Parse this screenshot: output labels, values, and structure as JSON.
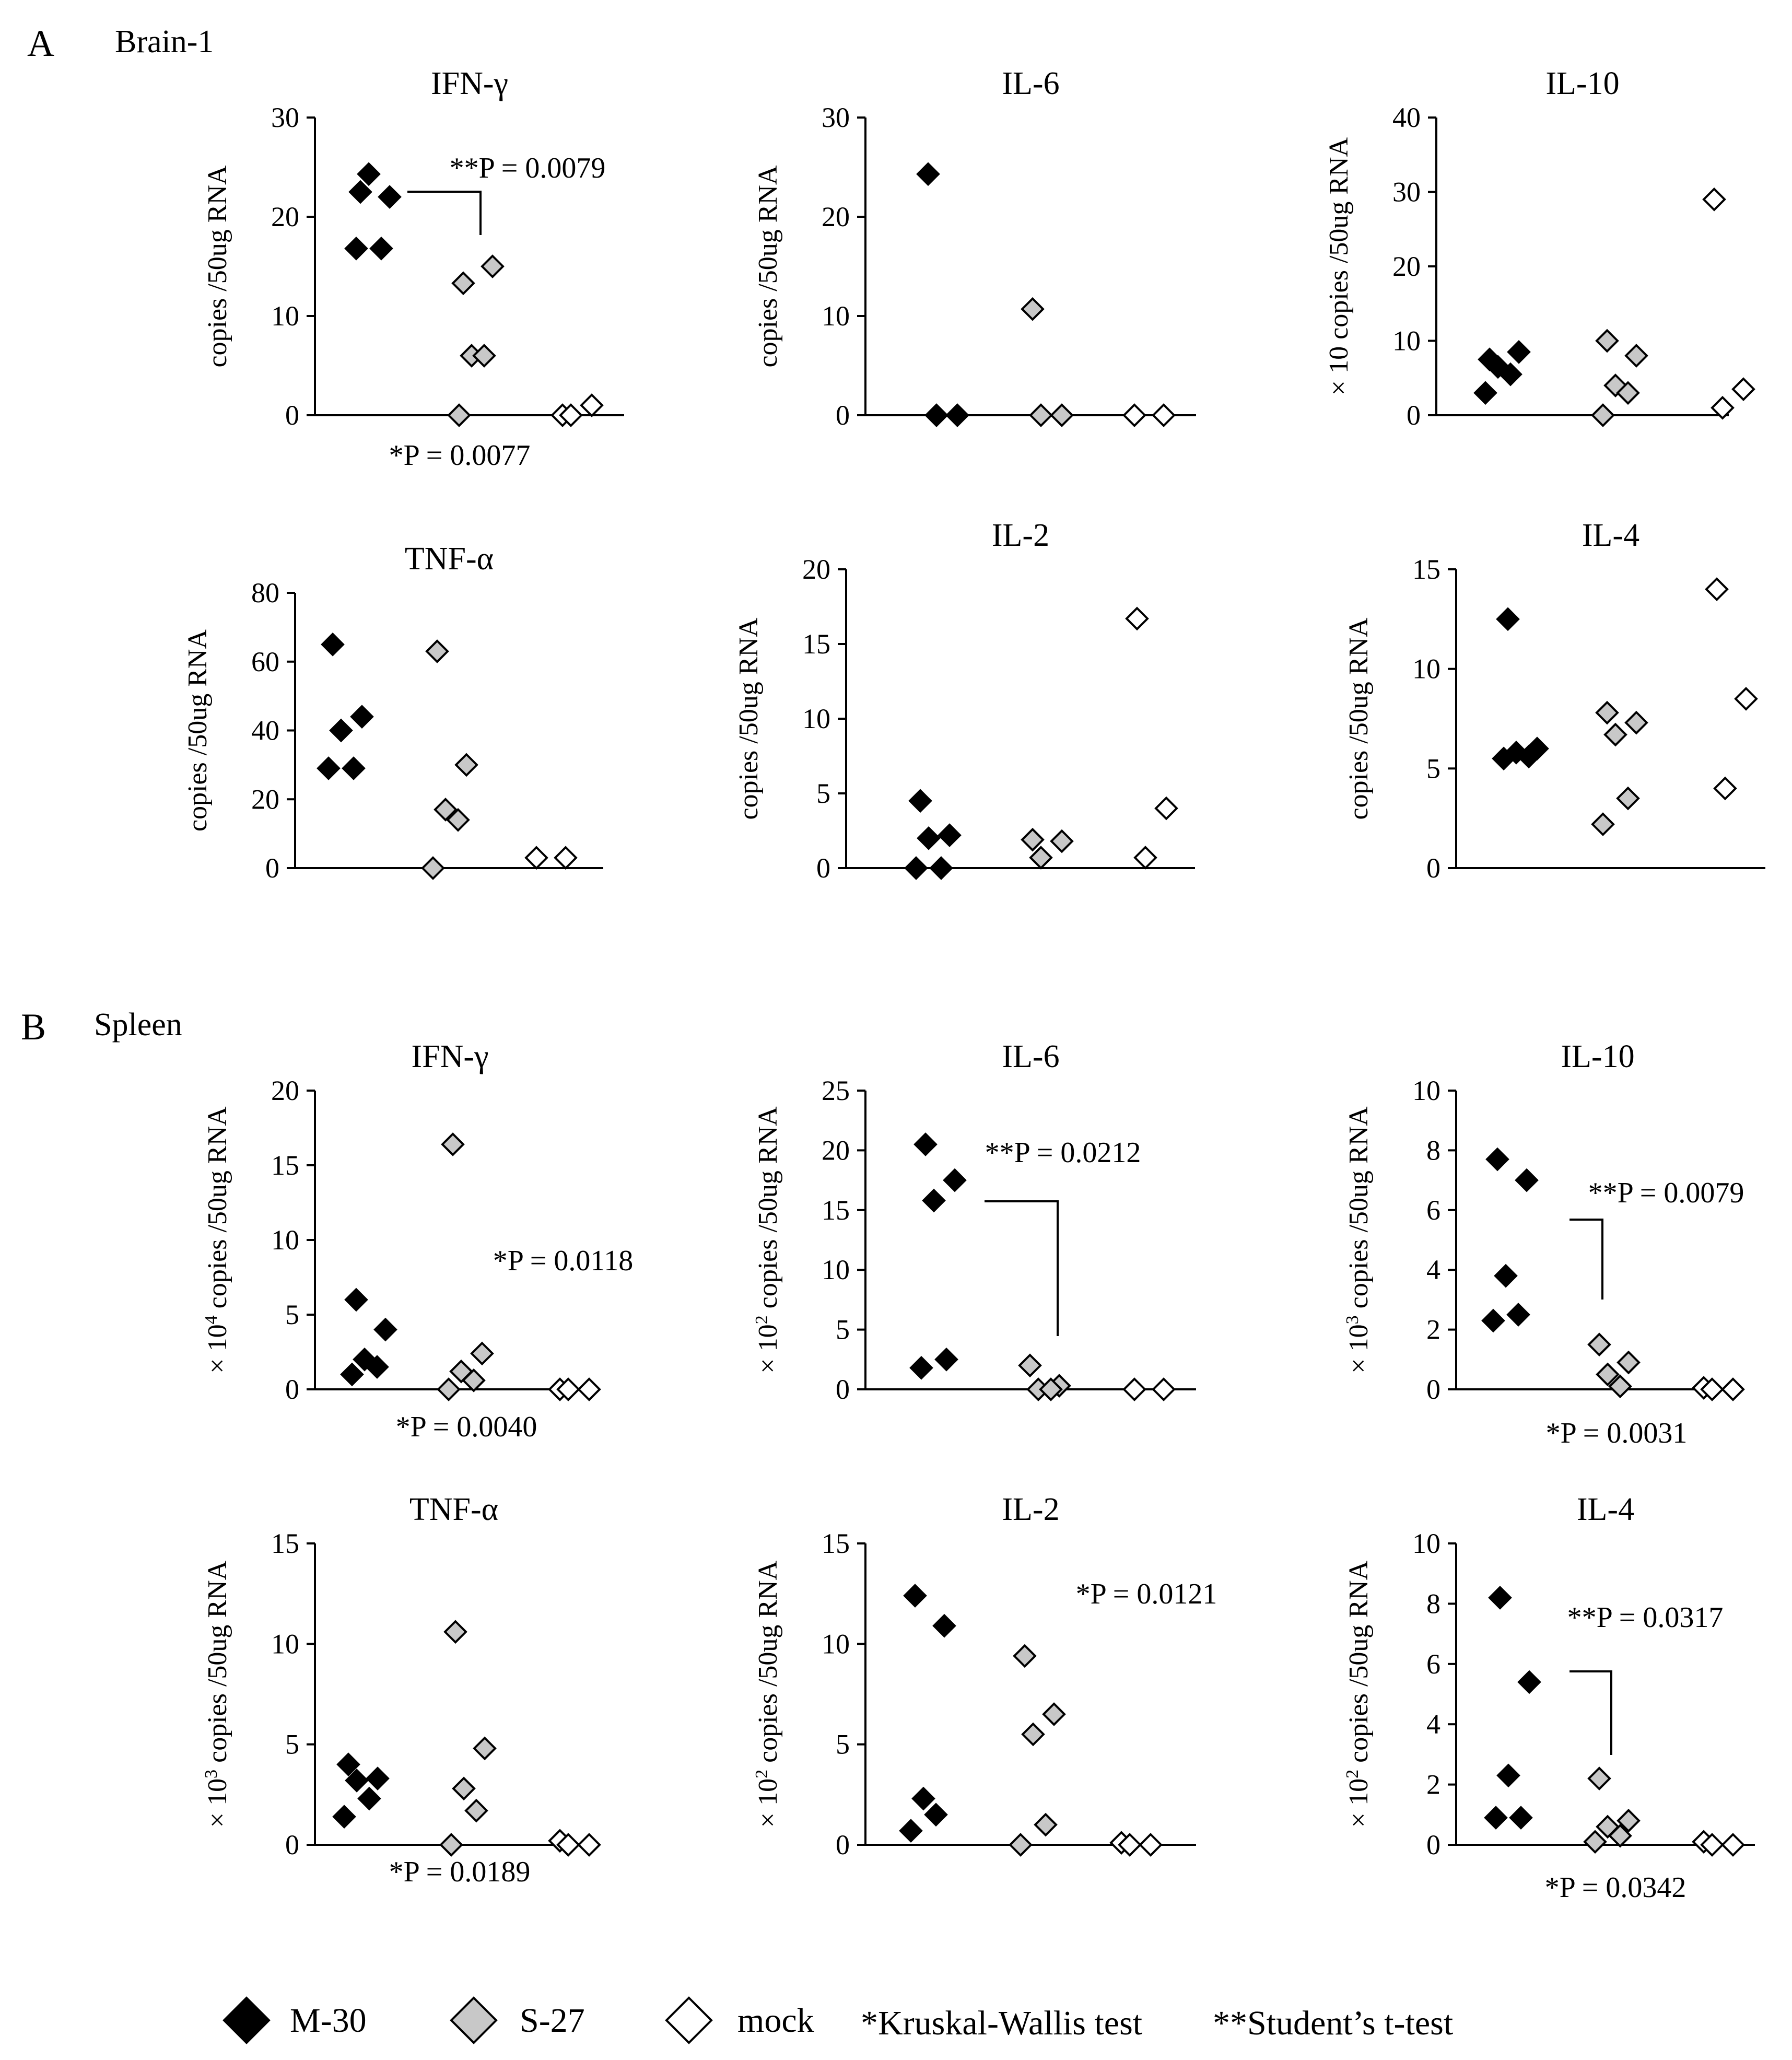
{
  "figure": {
    "panel_a": {
      "letter": "A",
      "name": "Brain-1"
    },
    "panel_b": {
      "letter": "B",
      "name": "Spleen"
    },
    "legend": {
      "m30": "M-30",
      "s27": "S-27",
      "mock": "mock",
      "kw": "*Kruskal-Wallis test",
      "tt": "**Student’s t-test"
    },
    "colors": {
      "m30": "#000000",
      "s27": "#c8c8c8",
      "mock": "#ffffff",
      "edge": "#000000"
    }
  },
  "chart_data": [
    {
      "type": "scatter",
      "panel": "A",
      "title": "IFN-γ",
      "ylabel": "copies /50ug RNA",
      "ylabel_prefix": "",
      "ylabel_exp": "",
      "ylim": [
        0,
        30
      ],
      "yticks": [
        0,
        10,
        20,
        30
      ],
      "xticks": [],
      "grid": false,
      "groups": [
        "M-30",
        "S-27",
        "mock"
      ],
      "series": [
        {
          "name": "M-30",
          "values": [
            22.5,
            22.0,
            24.3,
            16.8,
            16.8
          ]
        },
        {
          "name": "S-27",
          "values": [
            13.3,
            15.0,
            6.0,
            6.0,
            0.0
          ]
        },
        {
          "name": "mock",
          "values": [
            0.0,
            1.0,
            0.0
          ]
        }
      ],
      "annotations": {
        "kw": "*P = 0.0077",
        "tt": "**P = 0.0079"
      }
    },
    {
      "type": "scatter",
      "panel": "A",
      "title": "IL-6",
      "ylabel": "copies /50ug RNA",
      "ylabel_prefix": "",
      "ylabel_exp": "",
      "ylim": [
        0,
        30
      ],
      "yticks": [
        0,
        10,
        20,
        30
      ],
      "xticks": [],
      "grid": false,
      "groups": [
        "M-30",
        "S-27",
        "mock"
      ],
      "series": [
        {
          "name": "M-30",
          "values": [
            24.3,
            0.0,
            0.0
          ]
        },
        {
          "name": "S-27",
          "values": [
            10.7,
            0.0,
            0.0
          ]
        },
        {
          "name": "mock",
          "values": [
            0.0,
            0.0
          ]
        }
      ],
      "annotations": {}
    },
    {
      "type": "scatter",
      "panel": "A",
      "title": "IL-10",
      "ylabel": "copies /50ug RNA",
      "ylabel_prefix": "× 10 ",
      "ylabel_exp": "",
      "ylim": [
        0,
        40
      ],
      "yticks": [
        0,
        10,
        20,
        30,
        40
      ],
      "xticks": [],
      "grid": false,
      "groups": [
        "M-30",
        "S-27",
        "mock"
      ],
      "series": [
        {
          "name": "M-30",
          "values": [
            7.5,
            8.5,
            6.5,
            5.5,
            3.0
          ]
        },
        {
          "name": "S-27",
          "values": [
            10.0,
            8.0,
            4.0,
            3.0,
            0.0
          ]
        },
        {
          "name": "mock",
          "values": [
            29.0,
            3.5,
            1.0
          ]
        }
      ],
      "annotations": {}
    },
    {
      "type": "scatter",
      "panel": "A",
      "title": "TNF-α",
      "ylabel": "copies /50ug RNA",
      "ylabel_prefix": "",
      "ylabel_exp": "",
      "ylim": [
        0,
        80
      ],
      "yticks": [
        0,
        20,
        40,
        60,
        80
      ],
      "xticks": [],
      "grid": false,
      "groups": [
        "M-30",
        "S-27",
        "mock"
      ],
      "series": [
        {
          "name": "M-30",
          "values": [
            65.0,
            44.0,
            40.0,
            29.0,
            29.0
          ]
        },
        {
          "name": "S-27",
          "values": [
            63.0,
            30.0,
            17.0,
            14.0,
            0.0
          ]
        },
        {
          "name": "mock",
          "values": [
            3.0,
            3.0
          ]
        }
      ],
      "annotations": {}
    },
    {
      "type": "scatter",
      "panel": "A",
      "title": "IL-2",
      "ylabel": "copies /50ug RNA",
      "ylabel_prefix": "",
      "ylabel_exp": "",
      "ylim": [
        0,
        20
      ],
      "yticks": [
        0,
        5,
        10,
        15,
        20
      ],
      "xticks": [],
      "grid": false,
      "groups": [
        "M-30",
        "S-27",
        "mock"
      ],
      "series": [
        {
          "name": "M-30",
          "values": [
            4.5,
            2.2,
            2.0,
            0.0,
            0.0
          ]
        },
        {
          "name": "S-27",
          "values": [
            1.9,
            1.8,
            0.7
          ]
        },
        {
          "name": "mock",
          "values": [
            16.7,
            4.0,
            0.7
          ]
        }
      ],
      "annotations": {}
    },
    {
      "type": "scatter",
      "panel": "A",
      "title": "IL-4",
      "ylabel": "copies /50ug RNA",
      "ylabel_prefix": "",
      "ylabel_exp": "",
      "ylim": [
        0,
        15
      ],
      "yticks": [
        0,
        5,
        10,
        15
      ],
      "xticks": [],
      "grid": false,
      "groups": [
        "M-30",
        "S-27",
        "mock"
      ],
      "series": [
        {
          "name": "M-30",
          "values": [
            12.5,
            6.0,
            5.8,
            5.6,
            5.5
          ]
        },
        {
          "name": "S-27",
          "values": [
            7.8,
            7.3,
            6.7,
            3.5,
            2.2
          ]
        },
        {
          "name": "mock",
          "values": [
            14.0,
            8.5,
            4.0
          ]
        }
      ],
      "annotations": {}
    },
    {
      "type": "scatter",
      "panel": "B",
      "title": "IFN-γ",
      "ylabel": "copies /50ug RNA",
      "ylabel_prefix": "× 10",
      "ylabel_exp": "4",
      "ylim": [
        0,
        20
      ],
      "yticks": [
        0,
        5,
        10,
        15,
        20
      ],
      "xticks": [],
      "grid": false,
      "groups": [
        "M-30",
        "S-27",
        "mock"
      ],
      "series": [
        {
          "name": "M-30",
          "values": [
            6.0,
            4.0,
            2.0,
            1.5,
            1.0
          ]
        },
        {
          "name": "S-27",
          "values": [
            16.4,
            2.4,
            1.2,
            0.6,
            0.0
          ]
        },
        {
          "name": "mock",
          "values": [
            0.0,
            0.0,
            0.0
          ]
        }
      ],
      "annotations": {
        "kw": "*P = 0.0040",
        "kw2": "*P = 0.0118"
      }
    },
    {
      "type": "scatter",
      "panel": "B",
      "title": "IL-6",
      "ylabel": "copies /50ug RNA",
      "ylabel_prefix": "× 10",
      "ylabel_exp": "2",
      "ylim": [
        0,
        25
      ],
      "yticks": [
        0,
        5,
        10,
        15,
        20,
        25
      ],
      "xticks": [],
      "grid": false,
      "groups": [
        "M-30",
        "S-27",
        "mock"
      ],
      "series": [
        {
          "name": "M-30",
          "values": [
            20.5,
            17.5,
            15.8,
            2.5,
            1.8
          ]
        },
        {
          "name": "S-27",
          "values": [
            2.0,
            0.3,
            0.0,
            0.0
          ]
        },
        {
          "name": "mock",
          "values": [
            0.0,
            0.0
          ]
        }
      ],
      "annotations": {
        "tt": "**P = 0.0212"
      }
    },
    {
      "type": "scatter",
      "panel": "B",
      "title": "IL-10",
      "ylabel": "copies /50ug RNA",
      "ylabel_prefix": "× 10",
      "ylabel_exp": "3",
      "ylim": [
        0,
        10
      ],
      "yticks": [
        0,
        2,
        4,
        6,
        8,
        10
      ],
      "xticks": [],
      "grid": false,
      "groups": [
        "M-30",
        "S-27",
        "mock"
      ],
      "series": [
        {
          "name": "M-30",
          "values": [
            7.7,
            7.0,
            3.8,
            2.5,
            2.3
          ]
        },
        {
          "name": "S-27",
          "values": [
            1.5,
            0.9,
            0.5,
            0.1
          ]
        },
        {
          "name": "mock",
          "values": [
            0.05,
            0.0,
            0.0
          ]
        }
      ],
      "annotations": {
        "kw": "*P = 0.0031",
        "tt": "**P = 0.0079"
      }
    },
    {
      "type": "scatter",
      "panel": "B",
      "title": "TNF-α",
      "ylabel": "copies /50ug RNA",
      "ylabel_prefix": "× 10",
      "ylabel_exp": "3",
      "ylim": [
        0,
        15
      ],
      "yticks": [
        0,
        5,
        10,
        15
      ],
      "xticks": [],
      "grid": false,
      "groups": [
        "M-30",
        "S-27",
        "mock"
      ],
      "series": [
        {
          "name": "M-30",
          "values": [
            4.0,
            3.3,
            3.2,
            2.3,
            1.4
          ]
        },
        {
          "name": "S-27",
          "values": [
            10.6,
            4.8,
            2.8,
            1.7,
            0.0
          ]
        },
        {
          "name": "mock",
          "values": [
            0.2,
            0.0,
            0.0
          ]
        }
      ],
      "annotations": {
        "kw": "*P = 0.0189"
      }
    },
    {
      "type": "scatter",
      "panel": "B",
      "title": "IL-2",
      "ylabel": "copies /50ug RNA",
      "ylabel_prefix": "× 10",
      "ylabel_exp": "2",
      "ylim": [
        0,
        15
      ],
      "yticks": [
        0,
        5,
        10,
        15
      ],
      "xticks": [],
      "grid": false,
      "groups": [
        "M-30",
        "S-27",
        "mock"
      ],
      "series": [
        {
          "name": "M-30",
          "values": [
            12.4,
            10.9,
            2.3,
            1.5,
            0.7
          ]
        },
        {
          "name": "S-27",
          "values": [
            9.4,
            6.5,
            5.5,
            1.0,
            0.0
          ]
        },
        {
          "name": "mock",
          "values": [
            0.1,
            0.0,
            0.0
          ]
        }
      ],
      "annotations": {
        "kw": "*P = 0.0121"
      }
    },
    {
      "type": "scatter",
      "panel": "B",
      "title": "IL-4",
      "ylabel": "copies /50ug RNA",
      "ylabel_prefix": "× 10",
      "ylabel_exp": "2",
      "ylim": [
        0,
        10
      ],
      "yticks": [
        0,
        2,
        4,
        6,
        8,
        10
      ],
      "xticks": [],
      "grid": false,
      "groups": [
        "M-30",
        "S-27",
        "mock"
      ],
      "series": [
        {
          "name": "M-30",
          "values": [
            8.2,
            5.4,
            2.3,
            0.9,
            0.9
          ]
        },
        {
          "name": "S-27",
          "values": [
            2.2,
            0.8,
            0.6,
            0.3,
            0.1
          ]
        },
        {
          "name": "mock",
          "values": [
            0.1,
            0.0,
            0.0
          ]
        }
      ],
      "annotations": {
        "kw": "*P = 0.0342",
        "tt": "**P = 0.0317"
      }
    }
  ]
}
